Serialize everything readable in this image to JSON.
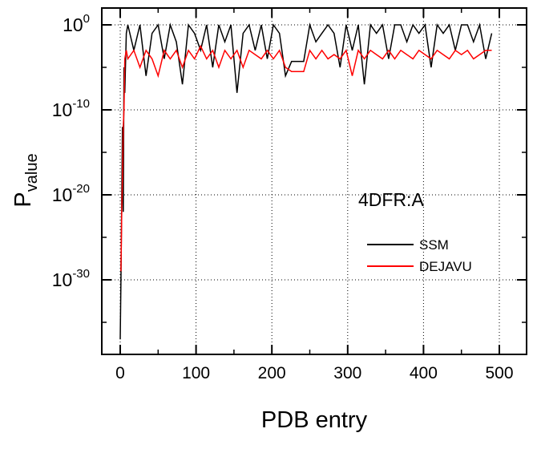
{
  "chart_data": {
    "type": "line",
    "title": "",
    "annotation": "4DFR:A",
    "xlabel": "PDB entry",
    "ylabel": {
      "base": "P",
      "subscript": "value"
    },
    "xlim": [
      -25,
      535
    ],
    "ylim_log10": [
      -38.7,
      2.1
    ],
    "yscale": "log",
    "xticks": [
      0,
      100,
      200,
      300,
      400,
      500
    ],
    "xtick_labels": [
      "0",
      "100",
      "200",
      "300",
      "400",
      "500"
    ],
    "yticks_log10": [
      0,
      -10,
      -20,
      -30
    ],
    "ytick_labels": [
      {
        "base": "10",
        "exp": "0"
      },
      {
        "base": "10",
        "exp": "-10"
      },
      {
        "base": "10",
        "exp": "-20"
      },
      {
        "base": "10",
        "exp": "-30"
      }
    ],
    "grid": true,
    "legend_position": "right-middle",
    "series": [
      {
        "name": "SSM",
        "color": "#000000",
        "x": [
          0,
          1,
          2,
          3,
          4,
          5,
          6,
          8,
          10,
          18,
          26,
          34,
          42,
          50,
          58,
          66,
          74,
          82,
          90,
          98,
          106,
          114,
          122,
          130,
          138,
          146,
          154,
          162,
          170,
          178,
          186,
          194,
          202,
          210,
          218,
          226,
          234,
          242,
          250,
          258,
          266,
          274,
          282,
          290,
          298,
          306,
          314,
          322,
          330,
          338,
          346,
          354,
          362,
          370,
          378,
          386,
          394,
          402,
          410,
          418,
          426,
          434,
          442,
          450,
          458,
          466,
          474,
          482,
          490
        ],
        "log10_y": [
          -37,
          -30,
          -20,
          -12,
          -22,
          -5,
          -8,
          -1,
          0,
          -3,
          0,
          -6,
          -1,
          0,
          -4,
          0,
          -2,
          -7,
          0,
          -1,
          -3,
          0,
          -5,
          0,
          -2,
          0,
          -8,
          -1,
          0,
          -3,
          0,
          -4,
          0,
          -1,
          -6,
          -4.3,
          -4.3,
          -4.3,
          0,
          -2,
          -1,
          0,
          -1,
          -5,
          0,
          -3,
          0,
          -7,
          0,
          -1,
          0,
          -4,
          0,
          0,
          -2,
          0,
          -1,
          0,
          -5,
          0,
          -1,
          0,
          -3,
          0,
          0,
          -2,
          0,
          -4,
          -1
        ]
      },
      {
        "name": "DEJAVU",
        "color": "#ff0000",
        "x": [
          1,
          2,
          3,
          4,
          5,
          6,
          8,
          10,
          18,
          26,
          34,
          42,
          50,
          58,
          66,
          74,
          82,
          90,
          98,
          106,
          114,
          122,
          130,
          138,
          146,
          154,
          162,
          170,
          178,
          186,
          194,
          202,
          210,
          218,
          226,
          234,
          242,
          250,
          258,
          266,
          274,
          282,
          290,
          298,
          306,
          314,
          322,
          330,
          338,
          346,
          354,
          362,
          370,
          378,
          386,
          394,
          402,
          410,
          418,
          426,
          434,
          442,
          450,
          458,
          466,
          474,
          482,
          490
        ],
        "log10_y": [
          -29,
          -22,
          -18,
          -12,
          -10,
          -4,
          -3,
          -4,
          -3,
          -5,
          -3,
          -4,
          -6,
          -3,
          -4,
          -3,
          -5,
          -3,
          -4,
          -2.5,
          -4,
          -3,
          -5,
          -3,
          -4,
          -3,
          -5,
          -3,
          -3.5,
          -4,
          -3,
          -4,
          -3,
          -5,
          -5.5,
          -5.5,
          -5.5,
          -3,
          -4,
          -3,
          -4,
          -3.5,
          -4,
          -3,
          -6,
          -3,
          -4,
          -3,
          -3.5,
          -4,
          -3,
          -4,
          -3,
          -3.5,
          -4,
          -3,
          -3.5,
          -4,
          -3,
          -3.5,
          -4,
          -3,
          -3.5,
          -3,
          -4,
          -3.5,
          -3,
          -3
        ]
      }
    ]
  }
}
